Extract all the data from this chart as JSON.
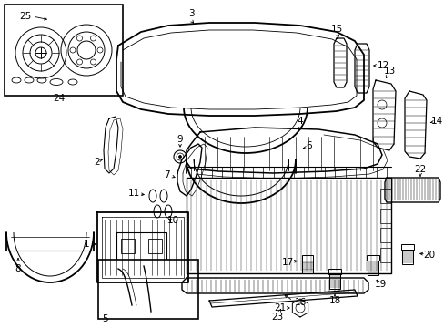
{
  "bg_color": "#ffffff",
  "fig_width": 4.89,
  "fig_height": 3.6,
  "dpi": 100,
  "lw_main": 1.0,
  "lw_thin": 0.5,
  "lw_thick": 1.4
}
